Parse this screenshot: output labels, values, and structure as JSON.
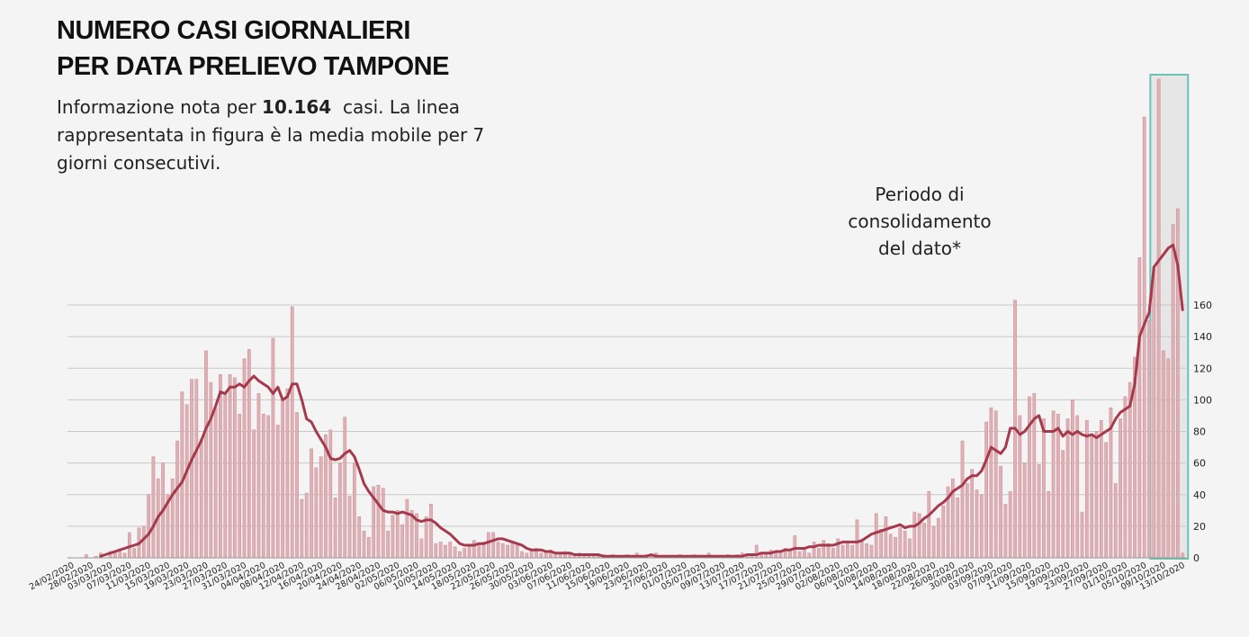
{
  "chart_data": {
    "type": "bar",
    "title": [
      "NUMERO CASI GIORNALIERI",
      "PER DATA PRELIEVO TAMPONE"
    ],
    "subtitle": [
      "Informazione nota per",
      "10.164",
      "casi. La linea rappresentata in figura è la media mobile per 7 giorni consecutivi."
    ],
    "annotation": [
      "Periodo di",
      "consolidamento",
      "del dato*"
    ],
    "categories": [
      "24/02/2020",
      null,
      null,
      null,
      "28/02/2020",
      null,
      null,
      null,
      "03/03/2020",
      null,
      null,
      null,
      "07/03/2020",
      null,
      null,
      null,
      "11/03/2020",
      null,
      null,
      null,
      "15/03/2020",
      null,
      null,
      null,
      "19/03/2020",
      null,
      null,
      null,
      "23/03/2020",
      null,
      null,
      null,
      "27/03/2020",
      null,
      null,
      null,
      "31/03/2020",
      null,
      null,
      null,
      "04/04/2020",
      null,
      null,
      null,
      "08/04/2020",
      null,
      null,
      null,
      "12/04/2020",
      null,
      null,
      null,
      "16/04/2020",
      null,
      null,
      null,
      "20/04/2020",
      null,
      null,
      null,
      "24/04/2020",
      null,
      null,
      null,
      "28/04/2020",
      null,
      null,
      null,
      "02/05/2020",
      null,
      null,
      null,
      "06/05/2020",
      null,
      null,
      null,
      "10/05/2020",
      null,
      null,
      null,
      "14/05/2020",
      null,
      null,
      null,
      "18/05/2020",
      null,
      null,
      null,
      "22/05/2020",
      null,
      null,
      null,
      "26/05/2020",
      null,
      null,
      null,
      "30/05/2020",
      null,
      null,
      null,
      "03/06/2020",
      null,
      null,
      null,
      "07/06/2020",
      null,
      null,
      null,
      "11/06/2020",
      null,
      null,
      null,
      "15/06/2020",
      null,
      null,
      null,
      "19/06/2020",
      null,
      null,
      null,
      "23/06/2020",
      null,
      null,
      null,
      "27/06/2020",
      null,
      null,
      null,
      "01/07/2020",
      null,
      null,
      null,
      "05/07/2020",
      null,
      null,
      null,
      "09/07/2020",
      null,
      null,
      null,
      "13/07/2020",
      null,
      null,
      null,
      "17/07/2020",
      null,
      null,
      null,
      "21/07/2020",
      null,
      null,
      null,
      "25/07/2020",
      null,
      null,
      null,
      "29/07/2020",
      null,
      null,
      null,
      "02/08/2020",
      null,
      null,
      null,
      "06/08/2020",
      null,
      null,
      null,
      "10/08/2020",
      null,
      null,
      null,
      "14/08/2020",
      null,
      null,
      null,
      "18/08/2020",
      null,
      null,
      null,
      "22/08/2020",
      null,
      null,
      null,
      "26/08/2020",
      null,
      null,
      null,
      "30/08/2020",
      null,
      null,
      null,
      "03/09/2020",
      null,
      null,
      null,
      "07/09/2020",
      null,
      null,
      null,
      "11/09/2020",
      null,
      null,
      null,
      "15/09/2020",
      null,
      null,
      null,
      "19/09/2020",
      null,
      null,
      null,
      "23/09/2020",
      null,
      null,
      null,
      "27/09/2020",
      null,
      null,
      null,
      "01/10/2020",
      null,
      null,
      null,
      "05/10/2020",
      null,
      null,
      null,
      "09/10/2020",
      null,
      null,
      null,
      "13/10/2020"
    ],
    "series": [
      {
        "type": "bar",
        "color": "#dfb0b5",
        "values": [
          0,
          0,
          0,
          2,
          0,
          1,
          3,
          0,
          4,
          3,
          5,
          3,
          16,
          6,
          19,
          20,
          40,
          64,
          50,
          60,
          40,
          50,
          74,
          105,
          97,
          113,
          113,
          75,
          131,
          111,
          95,
          116,
          104,
          116,
          114,
          91,
          126,
          132,
          81,
          104,
          91,
          90,
          139,
          84,
          100,
          107,
          159,
          92,
          37,
          41,
          69,
          57,
          64,
          78,
          81,
          38,
          60,
          89,
          39,
          60,
          26,
          17,
          13,
          45,
          46,
          44,
          17,
          27,
          30,
          21,
          37,
          30,
          28,
          12,
          26,
          34,
          9,
          10,
          8,
          10,
          7,
          4,
          6,
          8,
          11,
          9,
          10,
          16,
          16,
          10,
          9,
          8,
          10,
          8,
          4,
          3,
          5,
          6,
          3,
          4,
          5,
          3,
          2,
          4,
          3,
          2,
          3,
          2,
          1,
          2,
          1,
          2,
          1,
          2,
          0,
          1,
          2,
          1,
          3,
          1,
          2,
          1,
          3,
          1,
          1,
          0,
          1,
          2,
          1,
          0,
          2,
          1,
          1,
          3,
          1,
          0,
          1,
          2,
          1,
          2,
          3,
          1,
          1,
          8,
          2,
          3,
          5,
          3,
          4,
          6,
          5,
          14,
          4,
          6,
          3,
          10,
          6,
          11,
          9,
          6,
          12,
          8,
          9,
          8,
          24,
          10,
          9,
          8,
          28,
          18,
          26,
          15,
          13,
          19,
          17,
          12,
          29,
          28,
          22,
          42,
          20,
          25,
          33,
          45,
          50,
          38,
          74,
          47,
          56,
          43,
          40,
          86,
          95,
          93,
          58,
          34,
          42,
          163,
          90,
          60,
          102,
          104,
          59,
          88,
          42,
          93,
          91,
          68,
          88,
          100,
          90,
          29,
          87,
          78,
          80,
          87,
          73,
          95,
          47,
          88,
          102,
          111,
          127,
          190,
          279,
          150,
          183,
          303,
          131,
          126,
          211,
          221,
          3
        ]
      },
      {
        "type": "line",
        "color": "#a63a4c",
        "values": [
          null,
          null,
          null,
          null,
          null,
          null,
          1,
          2,
          3,
          4,
          5,
          6,
          7,
          8,
          9,
          12,
          15,
          20,
          26,
          30,
          35,
          40,
          44,
          48,
          55,
          62,
          68,
          74,
          82,
          88,
          96,
          105,
          104,
          108,
          108,
          110,
          108,
          112,
          115,
          112,
          110,
          108,
          104,
          108,
          100,
          102,
          110,
          110,
          100,
          88,
          86,
          80,
          75,
          70,
          63,
          62,
          63,
          66,
          68,
          64,
          56,
          47,
          42,
          38,
          34,
          30,
          29,
          29,
          28,
          29,
          28,
          27,
          24,
          23,
          24,
          24,
          22,
          19,
          17,
          15,
          12,
          9,
          8,
          8,
          8,
          9,
          9,
          10,
          11,
          12,
          12,
          11,
          10,
          9,
          8,
          6,
          5,
          5,
          5,
          4,
          4,
          3,
          3,
          3,
          3,
          2,
          2,
          2,
          2,
          2,
          2,
          1,
          1,
          1,
          1,
          1,
          1,
          1,
          1,
          1,
          1,
          2,
          1,
          1,
          1,
          1,
          1,
          1,
          1,
          1,
          1,
          1,
          1,
          1,
          1,
          1,
          1,
          1,
          1,
          1,
          1,
          2,
          2,
          2,
          3,
          3,
          3,
          4,
          4,
          5,
          5,
          6,
          6,
          6,
          7,
          7,
          8,
          8,
          8,
          8,
          9,
          10,
          10,
          10,
          10,
          11,
          13,
          15,
          16,
          17,
          18,
          19,
          20,
          21,
          19,
          20,
          20,
          22,
          25,
          27,
          30,
          33,
          35,
          38,
          42,
          44,
          46,
          50,
          52,
          52,
          55,
          62,
          70,
          68,
          66,
          70,
          82,
          82,
          78,
          80,
          84,
          88,
          90,
          80,
          80,
          80,
          82,
          77,
          80,
          78,
          80,
          78,
          77,
          78,
          76,
          78,
          80,
          82,
          88,
          92,
          94,
          96,
          110,
          140,
          148,
          155,
          184,
          188,
          192,
          196,
          198,
          185,
          157
        ]
      }
    ],
    "ylim": [
      0,
      310
    ],
    "yticks": [
      0,
      20,
      40,
      60,
      80,
      100,
      120,
      140,
      160
    ],
    "grid": true
  }
}
